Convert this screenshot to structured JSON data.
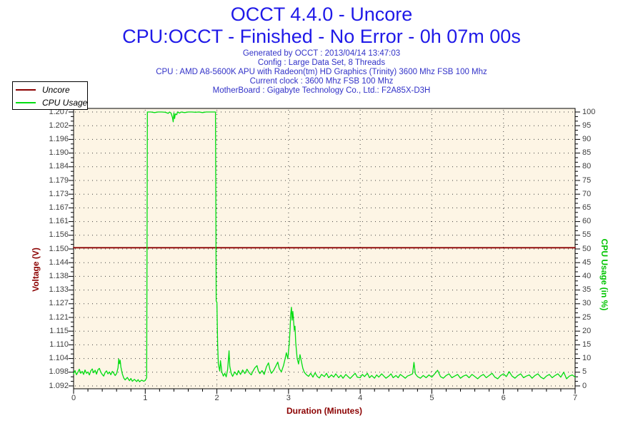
{
  "header": {
    "title_line1": "OCCT 4.4.0 - Uncore",
    "title_line2": "CPU:OCCT - Finished - No Error - 0h 07m 00s",
    "title_color": "#1f19e8",
    "info_color": "#3232c8",
    "info_lines": [
      "Generated by OCCT : 2013/04/14 13:47:03",
      "Config : Large Data Set, 8 Threads",
      "CPU : AMD A8-5600K APU with Radeon(tm) HD Graphics (Trinity) 3600 Mhz FSB 100 Mhz",
      "Current clock : 3600 Mhz FSB 100 Mhz",
      "MotherBoard : Gigabyte Technology Co., Ltd.: F2A85X-D3H"
    ]
  },
  "legend": {
    "items": [
      {
        "label": "Uncore",
        "color": "#8b0000"
      },
      {
        "label": "CPU Usage",
        "color": "#00dd11"
      }
    ]
  },
  "chart_data": {
    "type": "line",
    "title": "OCCT 4.4.0 - Uncore",
    "x_axis": {
      "label": "Duration (Minutes)",
      "label_color": "#8b0000",
      "min": 0,
      "max": 7,
      "major_tick_labels": [
        "0",
        "1",
        "2",
        "3",
        "4",
        "5",
        "6",
        "7"
      ],
      "minor_step": 0.2
    },
    "left_axis": {
      "label": "Voltage (V)",
      "label_color": "#8b0000",
      "top_value": 1.207,
      "bottom_value": 1.092,
      "tick_labels": [
        "1.207",
        "1.202",
        "1.196",
        "1.190",
        "1.184",
        "1.179",
        "1.173",
        "1.167",
        "1.161",
        "1.156",
        "1.150",
        "1.144",
        "1.138",
        "1.133",
        "1.127",
        "1.121",
        "1.115",
        "1.110",
        "1.104",
        "1.098",
        "1.092"
      ]
    },
    "right_axis": {
      "label": "CPU Usage (in %)",
      "label_color": "#00c400",
      "top_value": 100,
      "bottom_value": 0,
      "tick_labels": [
        "100",
        "95",
        "90",
        "85",
        "80",
        "75",
        "70",
        "65",
        "60",
        "55",
        "50",
        "45",
        "40",
        "35",
        "30",
        "25",
        "20",
        "15",
        "10",
        "5",
        "0"
      ]
    },
    "plot": {
      "background": "#fdf5e5",
      "grid_color": "#404040",
      "border_color": "#000000"
    },
    "series": [
      {
        "name": "Uncore",
        "axis": "left",
        "color": "#8b0000",
        "width": 1.8,
        "points": [
          [
            0,
            1.15
          ],
          [
            7,
            1.15
          ]
        ]
      },
      {
        "name": "CPU Usage",
        "axis": "right",
        "color": "#00dd11",
        "width": 1.3,
        "points": [
          [
            0,
            4.5
          ],
          [
            0.02,
            5.6
          ],
          [
            0.04,
            4.1
          ],
          [
            0.06,
            5.0
          ],
          [
            0.08,
            6.1
          ],
          [
            0.1,
            4.6
          ],
          [
            0.12,
            5.3
          ],
          [
            0.14,
            4.2
          ],
          [
            0.16,
            5.8
          ],
          [
            0.18,
            4.6
          ],
          [
            0.2,
            5.1
          ],
          [
            0.22,
            4.0
          ],
          [
            0.24,
            5.5
          ],
          [
            0.26,
            6.2
          ],
          [
            0.28,
            4.8
          ],
          [
            0.3,
            5.7
          ],
          [
            0.32,
            4.3
          ],
          [
            0.34,
            5.9
          ],
          [
            0.36,
            6.4
          ],
          [
            0.38,
            5.0
          ],
          [
            0.4,
            4.2
          ],
          [
            0.42,
            3.6
          ],
          [
            0.44,
            4.9
          ],
          [
            0.46,
            5.5
          ],
          [
            0.48,
            4.4
          ],
          [
            0.5,
            5.1
          ],
          [
            0.52,
            4.1
          ],
          [
            0.54,
            5.3
          ],
          [
            0.56,
            4.6
          ],
          [
            0.58,
            3.8
          ],
          [
            0.6,
            4.5
          ],
          [
            0.62,
            6.6
          ],
          [
            0.63,
            9.8
          ],
          [
            0.64,
            8.1
          ],
          [
            0.65,
            9.4
          ],
          [
            0.66,
            6.9
          ],
          [
            0.68,
            4.4
          ],
          [
            0.7,
            2.9
          ],
          [
            0.72,
            2.2
          ],
          [
            0.75,
            3.1
          ],
          [
            0.78,
            1.9
          ],
          [
            0.8,
            2.7
          ],
          [
            0.82,
            1.7
          ],
          [
            0.85,
            2.4
          ],
          [
            0.88,
            1.6
          ],
          [
            0.9,
            2.3
          ],
          [
            0.92,
            1.5
          ],
          [
            0.95,
            2.1
          ],
          [
            0.98,
            1.7
          ],
          [
            1.0,
            2.0
          ],
          [
            1.02,
            3.0
          ],
          [
            1.03,
            100
          ],
          [
            1.08,
            100
          ],
          [
            1.13,
            99.8
          ],
          [
            1.18,
            100
          ],
          [
            1.23,
            100
          ],
          [
            1.28,
            99.9
          ],
          [
            1.32,
            99.5
          ],
          [
            1.34,
            100
          ],
          [
            1.36,
            99.6
          ],
          [
            1.38,
            98.0
          ],
          [
            1.39,
            96.4
          ],
          [
            1.4,
            99.6
          ],
          [
            1.41,
            97.6
          ],
          [
            1.42,
            99.3
          ],
          [
            1.44,
            99.0
          ],
          [
            1.45,
            100
          ],
          [
            1.48,
            99.6
          ],
          [
            1.5,
            100
          ],
          [
            1.55,
            99.8
          ],
          [
            1.6,
            100
          ],
          [
            1.65,
            100
          ],
          [
            1.7,
            99.9
          ],
          [
            1.75,
            100
          ],
          [
            1.8,
            99.8
          ],
          [
            1.85,
            100
          ],
          [
            1.9,
            100
          ],
          [
            1.95,
            100
          ],
          [
            1.98,
            100
          ],
          [
            1.99,
            31
          ],
          [
            2.0,
            30.5
          ],
          [
            2.01,
            15.5
          ],
          [
            2.02,
            8.0
          ],
          [
            2.04,
            5.4
          ],
          [
            2.05,
            9.2
          ],
          [
            2.07,
            5.0
          ],
          [
            2.09,
            3.6
          ],
          [
            2.11,
            4.6
          ],
          [
            2.13,
            3.3
          ],
          [
            2.15,
            6.0
          ],
          [
            2.17,
            12.8
          ],
          [
            2.18,
            7.2
          ],
          [
            2.2,
            4.6
          ],
          [
            2.22,
            3.5
          ],
          [
            2.25,
            5.1
          ],
          [
            2.28,
            4.0
          ],
          [
            2.3,
            5.6
          ],
          [
            2.33,
            4.2
          ],
          [
            2.36,
            5.8
          ],
          [
            2.39,
            4.5
          ],
          [
            2.42,
            6.1
          ],
          [
            2.45,
            4.8
          ],
          [
            2.48,
            4.0
          ],
          [
            2.5,
            5.2
          ],
          [
            2.53,
            6.6
          ],
          [
            2.56,
            7.4
          ],
          [
            2.58,
            5.4
          ],
          [
            2.6,
            4.5
          ],
          [
            2.63,
            5.6
          ],
          [
            2.66,
            4.2
          ],
          [
            2.69,
            6.9
          ],
          [
            2.72,
            8.4
          ],
          [
            2.74,
            6.0
          ],
          [
            2.76,
            4.6
          ],
          [
            2.79,
            5.6
          ],
          [
            2.82,
            7.1
          ],
          [
            2.85,
            8.7
          ],
          [
            2.87,
            6.4
          ],
          [
            2.9,
            5.1
          ],
          [
            2.93,
            7.4
          ],
          [
            2.95,
            9.6
          ],
          [
            2.97,
            12.1
          ],
          [
            2.99,
            9.9
          ],
          [
            3.01,
            15.8
          ],
          [
            3.02,
            20.2
          ],
          [
            3.03,
            26.1
          ],
          [
            3.04,
            28.7
          ],
          [
            3.05,
            24.0
          ],
          [
            3.06,
            27.2
          ],
          [
            3.07,
            23.8
          ],
          [
            3.08,
            20.4
          ],
          [
            3.09,
            21.8
          ],
          [
            3.1,
            15.9
          ],
          [
            3.12,
            10.1
          ],
          [
            3.14,
            8.0
          ],
          [
            3.16,
            11.4
          ],
          [
            3.18,
            8.9
          ],
          [
            3.2,
            6.4
          ],
          [
            3.22,
            5.0
          ],
          [
            3.25,
            4.1
          ],
          [
            3.28,
            3.5
          ],
          [
            3.31,
            4.6
          ],
          [
            3.34,
            3.2
          ],
          [
            3.37,
            4.8
          ],
          [
            3.4,
            3.5
          ],
          [
            3.43,
            2.9
          ],
          [
            3.46,
            4.2
          ],
          [
            3.5,
            3.4
          ],
          [
            3.53,
            4.6
          ],
          [
            3.56,
            3.0
          ],
          [
            3.6,
            4.0
          ],
          [
            3.63,
            3.2
          ],
          [
            3.66,
            4.4
          ],
          [
            3.7,
            3.0
          ],
          [
            3.73,
            3.9
          ],
          [
            3.76,
            2.8
          ],
          [
            3.8,
            4.2
          ],
          [
            3.83,
            3.4
          ],
          [
            3.86,
            2.7
          ],
          [
            3.9,
            3.8
          ],
          [
            3.93,
            4.6
          ],
          [
            3.96,
            3.2
          ],
          [
            4.0,
            3.0
          ],
          [
            4.03,
            4.2
          ],
          [
            4.06,
            3.4
          ],
          [
            4.1,
            4.6
          ],
          [
            4.13,
            3.0
          ],
          [
            4.16,
            3.8
          ],
          [
            4.2,
            2.8
          ],
          [
            4.23,
            4.0
          ],
          [
            4.26,
            3.2
          ],
          [
            4.3,
            4.4
          ],
          [
            4.33,
            3.6
          ],
          [
            4.36,
            2.8
          ],
          [
            4.4,
            3.6
          ],
          [
            4.43,
            4.4
          ],
          [
            4.46,
            3.0
          ],
          [
            4.5,
            3.8
          ],
          [
            4.53,
            3.0
          ],
          [
            4.56,
            4.2
          ],
          [
            4.6,
            3.4
          ],
          [
            4.63,
            2.8
          ],
          [
            4.66,
            3.6
          ],
          [
            4.7,
            4.0
          ],
          [
            4.73,
            4.4
          ],
          [
            4.75,
            8.6
          ],
          [
            4.77,
            4.4
          ],
          [
            4.8,
            3.4
          ],
          [
            4.84,
            2.8
          ],
          [
            4.88,
            3.8
          ],
          [
            4.92,
            3.0
          ],
          [
            4.96,
            4.0
          ],
          [
            5.0,
            3.2
          ],
          [
            5.04,
            4.4
          ],
          [
            5.08,
            5.7
          ],
          [
            5.12,
            3.4
          ],
          [
            5.16,
            2.8
          ],
          [
            5.2,
            3.8
          ],
          [
            5.24,
            4.4
          ],
          [
            5.28,
            3.0
          ],
          [
            5.32,
            3.6
          ],
          [
            5.36,
            4.2
          ],
          [
            5.4,
            2.8
          ],
          [
            5.44,
            3.6
          ],
          [
            5.48,
            4.0
          ],
          [
            5.52,
            3.0
          ],
          [
            5.56,
            4.2
          ],
          [
            5.6,
            3.4
          ],
          [
            5.64,
            2.6
          ],
          [
            5.68,
            3.6
          ],
          [
            5.72,
            4.2
          ],
          [
            5.76,
            3.0
          ],
          [
            5.8,
            3.8
          ],
          [
            5.84,
            4.6
          ],
          [
            5.88,
            3.2
          ],
          [
            5.92,
            2.6
          ],
          [
            5.96,
            3.8
          ],
          [
            6.0,
            4.4
          ],
          [
            6.04,
            3.4
          ],
          [
            6.08,
            5.2
          ],
          [
            6.12,
            3.6
          ],
          [
            6.16,
            2.8
          ],
          [
            6.2,
            3.8
          ],
          [
            6.24,
            4.4
          ],
          [
            6.28,
            3.0
          ],
          [
            6.32,
            3.6
          ],
          [
            6.36,
            4.0
          ],
          [
            6.4,
            2.8
          ],
          [
            6.44,
            3.8
          ],
          [
            6.48,
            4.4
          ],
          [
            6.52,
            3.2
          ],
          [
            6.56,
            2.6
          ],
          [
            6.6,
            3.6
          ],
          [
            6.64,
            4.2
          ],
          [
            6.68,
            3.0
          ],
          [
            6.72,
            3.8
          ],
          [
            6.76,
            4.4
          ],
          [
            6.8,
            3.2
          ],
          [
            6.84,
            5.0
          ],
          [
            6.88,
            2.6
          ],
          [
            6.92,
            3.6
          ],
          [
            6.96,
            4.0
          ],
          [
            7.0,
            3.2
          ]
        ]
      }
    ]
  }
}
